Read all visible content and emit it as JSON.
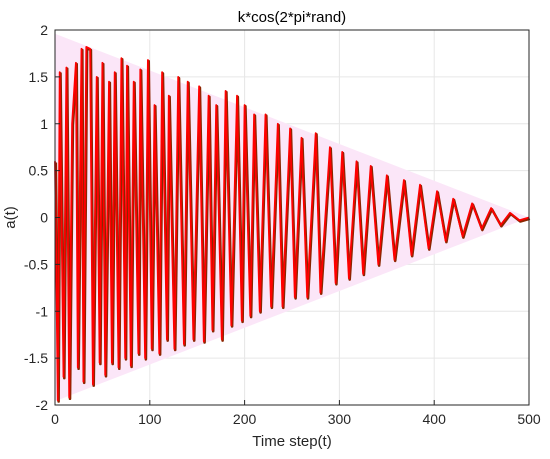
{
  "chart_data": {
    "type": "line",
    "title": "k*cos(2*pi*rand)",
    "xlabel": "Time step(t)",
    "ylabel": "a(t)",
    "xlim": [
      0,
      500
    ],
    "ylim": [
      -2,
      2
    ],
    "xticks": [
      "0",
      "100",
      "200",
      "300",
      "400",
      "500"
    ],
    "yticks": [
      "-2",
      "-1.5",
      "-1",
      "-0.5",
      "0",
      "0.5",
      "1",
      "1.5",
      "2"
    ],
    "grid": true,
    "legend": "none",
    "amplitude_start": 2,
    "amplitude_end": 0,
    "colors": {
      "line": "#ff0000",
      "line_shadow": "#8b2500",
      "envelope_fill": "#fbe6f8",
      "grid": "#e6e6e6",
      "axes": "#262626"
    },
    "peaks": [
      {
        "x": 5,
        "y": 1.55
      },
      {
        "x": 12,
        "y": 1.6
      },
      {
        "x": 18,
        "y": 1.0
      },
      {
        "x": 22,
        "y": 1.65
      },
      {
        "x": 28,
        "y": 1.8
      },
      {
        "x": 33,
        "y": 1.82
      },
      {
        "x": 37,
        "y": 1.8
      },
      {
        "x": 44,
        "y": 1.5
      },
      {
        "x": 50,
        "y": 1.65
      },
      {
        "x": 57,
        "y": 1.45
      },
      {
        "x": 63,
        "y": 1.55
      },
      {
        "x": 70,
        "y": 1.7
      },
      {
        "x": 76,
        "y": 1.62
      },
      {
        "x": 83,
        "y": 1.45
      },
      {
        "x": 90,
        "y": 1.58
      },
      {
        "x": 98,
        "y": 1.68
      },
      {
        "x": 105,
        "y": 1.2
      },
      {
        "x": 113,
        "y": 1.55
      },
      {
        "x": 120,
        "y": 1.3
      },
      {
        "x": 130,
        "y": 1.5
      },
      {
        "x": 140,
        "y": 1.45
      },
      {
        "x": 152,
        "y": 1.4
      },
      {
        "x": 162,
        "y": 1.3
      },
      {
        "x": 170,
        "y": 1.2
      },
      {
        "x": 180,
        "y": 1.35
      },
      {
        "x": 192,
        "y": 1.3
      },
      {
        "x": 200,
        "y": 1.2
      },
      {
        "x": 210,
        "y": 1.1
      },
      {
        "x": 222,
        "y": 1.1
      },
      {
        "x": 235,
        "y": 1.0
      },
      {
        "x": 248,
        "y": 0.95
      },
      {
        "x": 260,
        "y": 0.85
      },
      {
        "x": 275,
        "y": 0.9
      },
      {
        "x": 290,
        "y": 0.75
      },
      {
        "x": 303,
        "y": 0.7
      },
      {
        "x": 318,
        "y": 0.6
      },
      {
        "x": 333,
        "y": 0.55
      },
      {
        "x": 350,
        "y": 0.45
      },
      {
        "x": 368,
        "y": 0.4
      },
      {
        "x": 385,
        "y": 0.35
      },
      {
        "x": 403,
        "y": 0.28
      },
      {
        "x": 420,
        "y": 0.2
      },
      {
        "x": 440,
        "y": 0.15
      },
      {
        "x": 460,
        "y": 0.1
      },
      {
        "x": 480,
        "y": 0.05
      }
    ],
    "troughs": [
      {
        "x": 3,
        "y": -1.95
      },
      {
        "x": 9,
        "y": -1.7
      },
      {
        "x": 15,
        "y": -1.92
      },
      {
        "x": 24,
        "y": -1.6
      },
      {
        "x": 30,
        "y": -1.75
      },
      {
        "x": 40,
        "y": -1.78
      },
      {
        "x": 47,
        "y": -1.55
      },
      {
        "x": 53,
        "y": -1.68
      },
      {
        "x": 60,
        "y": -1.55
      },
      {
        "x": 67,
        "y": -1.6
      },
      {
        "x": 74,
        "y": -1.5
      },
      {
        "x": 80,
        "y": -1.58
      },
      {
        "x": 88,
        "y": -1.45
      },
      {
        "x": 95,
        "y": -1.5
      },
      {
        "x": 102,
        "y": -1.4
      },
      {
        "x": 110,
        "y": -1.45
      },
      {
        "x": 118,
        "y": -1.3
      },
      {
        "x": 126,
        "y": -1.4
      },
      {
        "x": 136,
        "y": -1.35
      },
      {
        "x": 146,
        "y": -1.3
      },
      {
        "x": 157,
        "y": -1.32
      },
      {
        "x": 166,
        "y": -1.2
      },
      {
        "x": 176,
        "y": -1.3
      },
      {
        "x": 186,
        "y": -1.15
      },
      {
        "x": 197,
        "y": -1.1
      },
      {
        "x": 206,
        "y": -1.05
      },
      {
        "x": 216,
        "y": -1.0
      },
      {
        "x": 228,
        "y": -0.95
      },
      {
        "x": 240,
        "y": -0.95
      },
      {
        "x": 253,
        "y": -0.85
      },
      {
        "x": 266,
        "y": -0.85
      },
      {
        "x": 280,
        "y": -0.8
      },
      {
        "x": 296,
        "y": -0.7
      },
      {
        "x": 310,
        "y": -0.65
      },
      {
        "x": 325,
        "y": -0.6
      },
      {
        "x": 341,
        "y": -0.5
      },
      {
        "x": 358,
        "y": -0.45
      },
      {
        "x": 376,
        "y": -0.4
      },
      {
        "x": 394,
        "y": -0.33
      },
      {
        "x": 412,
        "y": -0.25
      },
      {
        "x": 430,
        "y": -0.2
      },
      {
        "x": 450,
        "y": -0.12
      },
      {
        "x": 470,
        "y": -0.08
      },
      {
        "x": 490,
        "y": -0.03
      }
    ]
  }
}
